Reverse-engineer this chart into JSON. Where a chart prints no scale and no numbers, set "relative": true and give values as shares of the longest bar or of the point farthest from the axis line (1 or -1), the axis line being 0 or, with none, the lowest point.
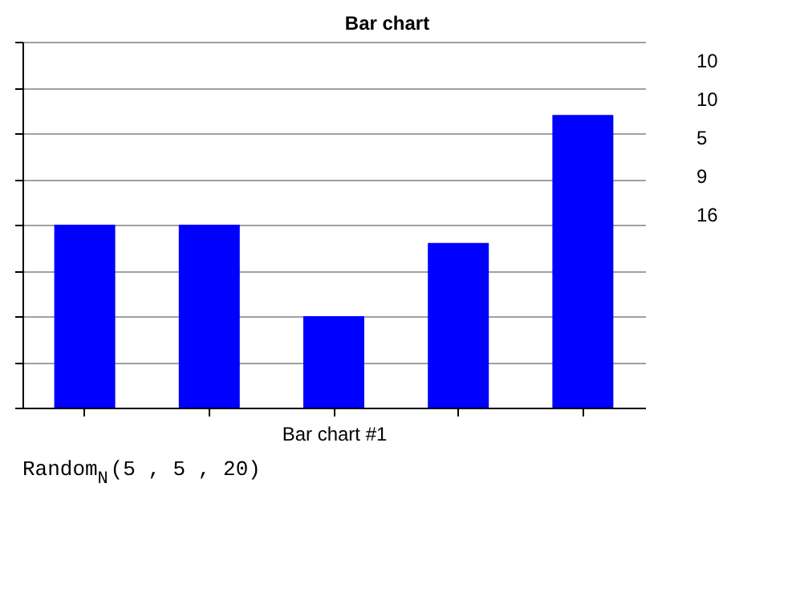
{
  "chart_data": {
    "type": "bar",
    "title": "Bar chart",
    "xlabel": "Bar chart #1",
    "categories": [
      null,
      null,
      null,
      null,
      null
    ],
    "values": [
      0.625,
      0.625,
      0.3125,
      0.5625,
      1
    ],
    "colors": [
      "#0000ff",
      "#0000ff",
      "#0000ff",
      "#0000ff",
      "#0000ff"
    ],
    "relative": true,
    "grid": "y",
    "annotations": [
      "10",
      "10",
      "5",
      "9",
      "16",
      "Random$_{N}$(5 , 5 , 20)"
    ]
  }
}
